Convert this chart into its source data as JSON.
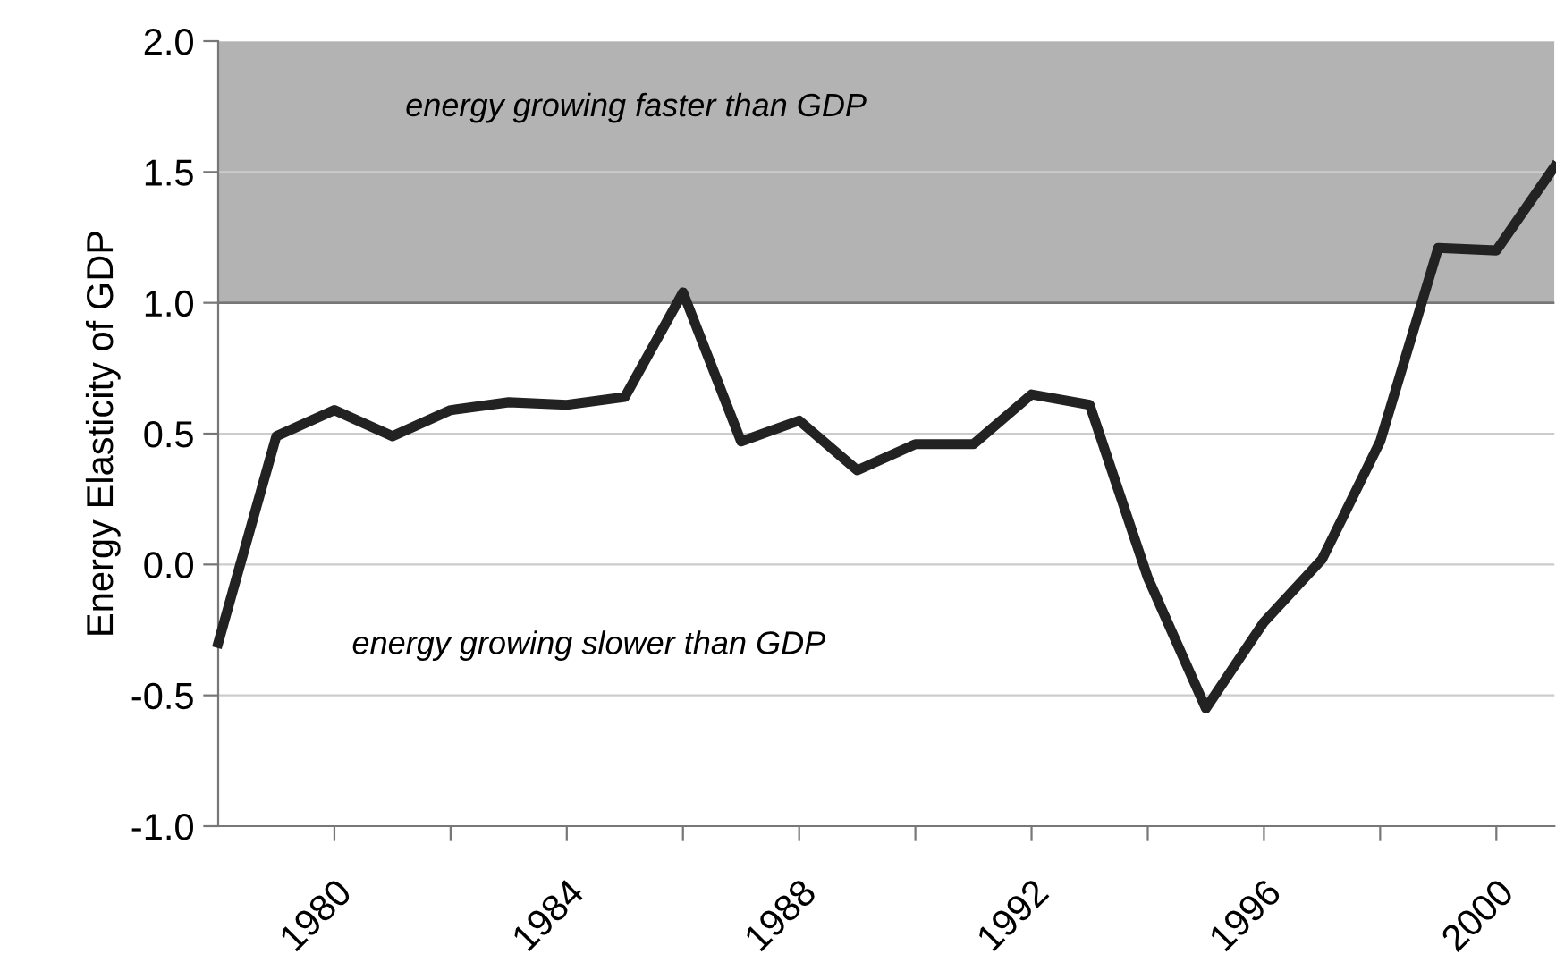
{
  "chart_data": {
    "type": "line",
    "ylabel": "Energy Elasticity of GDP",
    "x": [
      1978,
      1979,
      1980,
      1981,
      1982,
      1983,
      1984,
      1985,
      1986,
      1987,
      1988,
      1989,
      1990,
      1991,
      1992,
      1993,
      1994,
      1995,
      1996,
      1997,
      1998,
      1999,
      2000,
      2001
    ],
    "series": [
      {
        "color": "#222222",
        "values": [
          -0.3,
          0.49,
          0.59,
          0.49,
          0.59,
          0.62,
          0.61,
          0.64,
          1.04,
          0.47,
          0.55,
          0.36,
          0.46,
          0.46,
          0.65,
          0.61,
          -0.05,
          -0.55,
          -0.22,
          0.02,
          0.47,
          1.21,
          1.2,
          1.52
        ]
      }
    ],
    "xlim": [
      1978,
      2001
    ],
    "xticks": [
      1980,
      {
        "value": 1982,
        "label": null
      },
      1984,
      {
        "value": 1986,
        "label": null
      },
      1988,
      {
        "value": 1990,
        "label": null
      },
      1992,
      {
        "value": 1994,
        "label": null
      },
      1996,
      {
        "value": 1998,
        "label": null
      },
      2000
    ],
    "ylim": [
      -1.0,
      2.0
    ],
    "yticks": [
      {
        "value": -1.0,
        "label": "-1.0"
      },
      {
        "value": -0.5,
        "label": "-0.5"
      },
      {
        "value": 0.0,
        "label": "0.0"
      },
      {
        "value": 0.5,
        "label": "0.5"
      },
      {
        "value": 1.0,
        "label": "1.0"
      },
      {
        "value": 1.5,
        "label": "1.5"
      },
      {
        "value": 2.0,
        "label": "2.0"
      }
    ],
    "bands": [
      {
        "axis": "y",
        "from": 1.0,
        "to": 2.0,
        "label": "energy growing faster than GDP",
        "color": "#b3b3b3"
      }
    ],
    "ref_lines": [
      {
        "axis": "y",
        "value": 1.0,
        "color": "#777777"
      }
    ],
    "annotations": [
      "energy growing slower than GDP"
    ],
    "grid": "y",
    "marker": "none",
    "line_style": "solid",
    "legend": false
  }
}
